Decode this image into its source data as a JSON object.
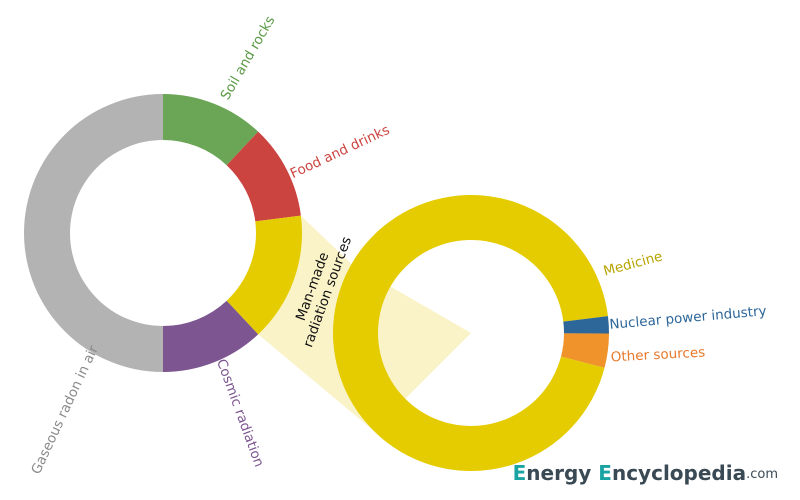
{
  "chart_data": [
    {
      "type": "donut",
      "categories": [
        "Soil and rocks",
        "Food and drinks",
        "Man-made radiation sources",
        "Cosmic radiation",
        "Gaseous radon in air"
      ],
      "values": [
        12,
        11,
        15,
        12,
        50
      ],
      "colors": [
        "#6ba556",
        "#cc4440",
        "#e5cc00",
        "#7d5590",
        "#b3b3b3"
      ],
      "label_colors": [
        "#5c9a47",
        "#cc4440",
        "#111111",
        "#7d5590",
        "#8a8a8a"
      ]
    },
    {
      "type": "donut",
      "categories": [
        "Medicine",
        "Nuclear power industry",
        "Other sources"
      ],
      "values": [
        94,
        2,
        4
      ],
      "colors": [
        "#e5cc00",
        "#2d6699",
        "#f0932a"
      ],
      "label_colors": [
        "#b8a400",
        "#2d6699",
        "#e8782a"
      ]
    }
  ],
  "brand": {
    "parts": [
      "E",
      "nergy ",
      "E",
      "ncyclopedia",
      ".com"
    ]
  }
}
